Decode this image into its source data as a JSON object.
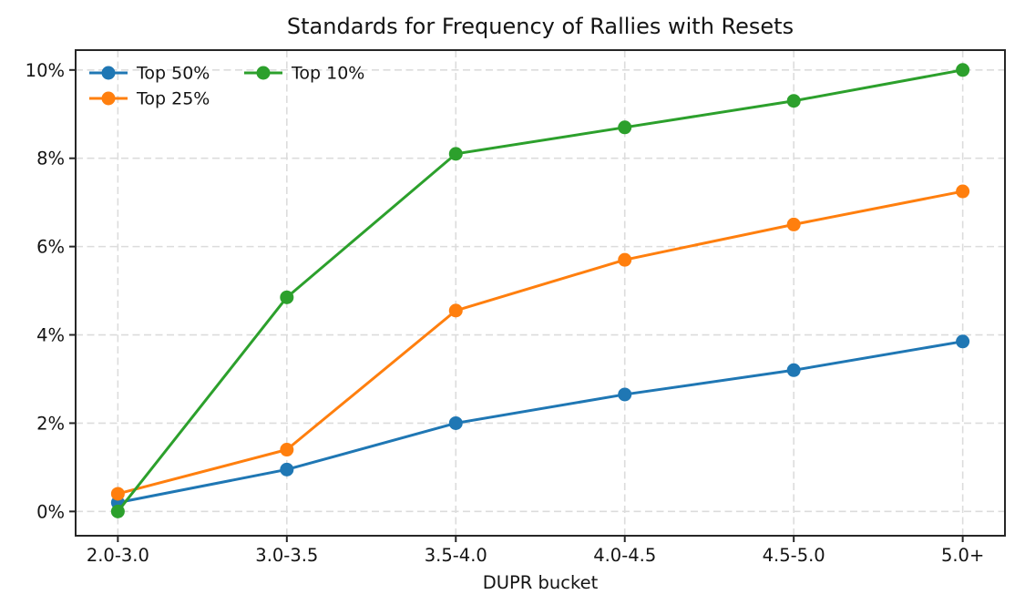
{
  "chart_data": {
    "type": "line",
    "title": "Standards for Frequency of Rallies with Resets",
    "xlabel": "DUPR bucket",
    "ylabel": "",
    "categories": [
      "2.0-3.0",
      "3.0-3.5",
      "3.5-4.0",
      "4.0-4.5",
      "4.5-5.0",
      "5.0+"
    ],
    "series": [
      {
        "name": "Top 50%",
        "color": "#1f77b4",
        "values": [
          0.2,
          0.95,
          2.0,
          2.65,
          3.2,
          3.85
        ]
      },
      {
        "name": "Top 25%",
        "color": "#ff7f0e",
        "values": [
          0.4,
          1.4,
          4.55,
          5.7,
          6.5,
          7.25
        ]
      },
      {
        "name": "Top 10%",
        "color": "#2ca02c",
        "values": [
          0.0,
          4.85,
          8.1,
          8.7,
          9.3,
          10.0
        ]
      }
    ],
    "yticks": [
      0,
      2,
      4,
      6,
      8,
      10
    ],
    "ytick_labels": [
      "0%",
      "2%",
      "4%",
      "6%",
      "8%",
      "10%"
    ],
    "ylim": [
      -0.55,
      10.45
    ],
    "xlim": [
      -0.25,
      5.25
    ],
    "grid": true,
    "grid_style": "dashed",
    "legend_position": "upper-left",
    "legend_columns": 2,
    "legend_frame": false
  },
  "colors": {
    "background": "#ffffff",
    "grid": "#dcdcdc",
    "spine": "#262626",
    "tick": "#262626",
    "text": "#141414"
  }
}
